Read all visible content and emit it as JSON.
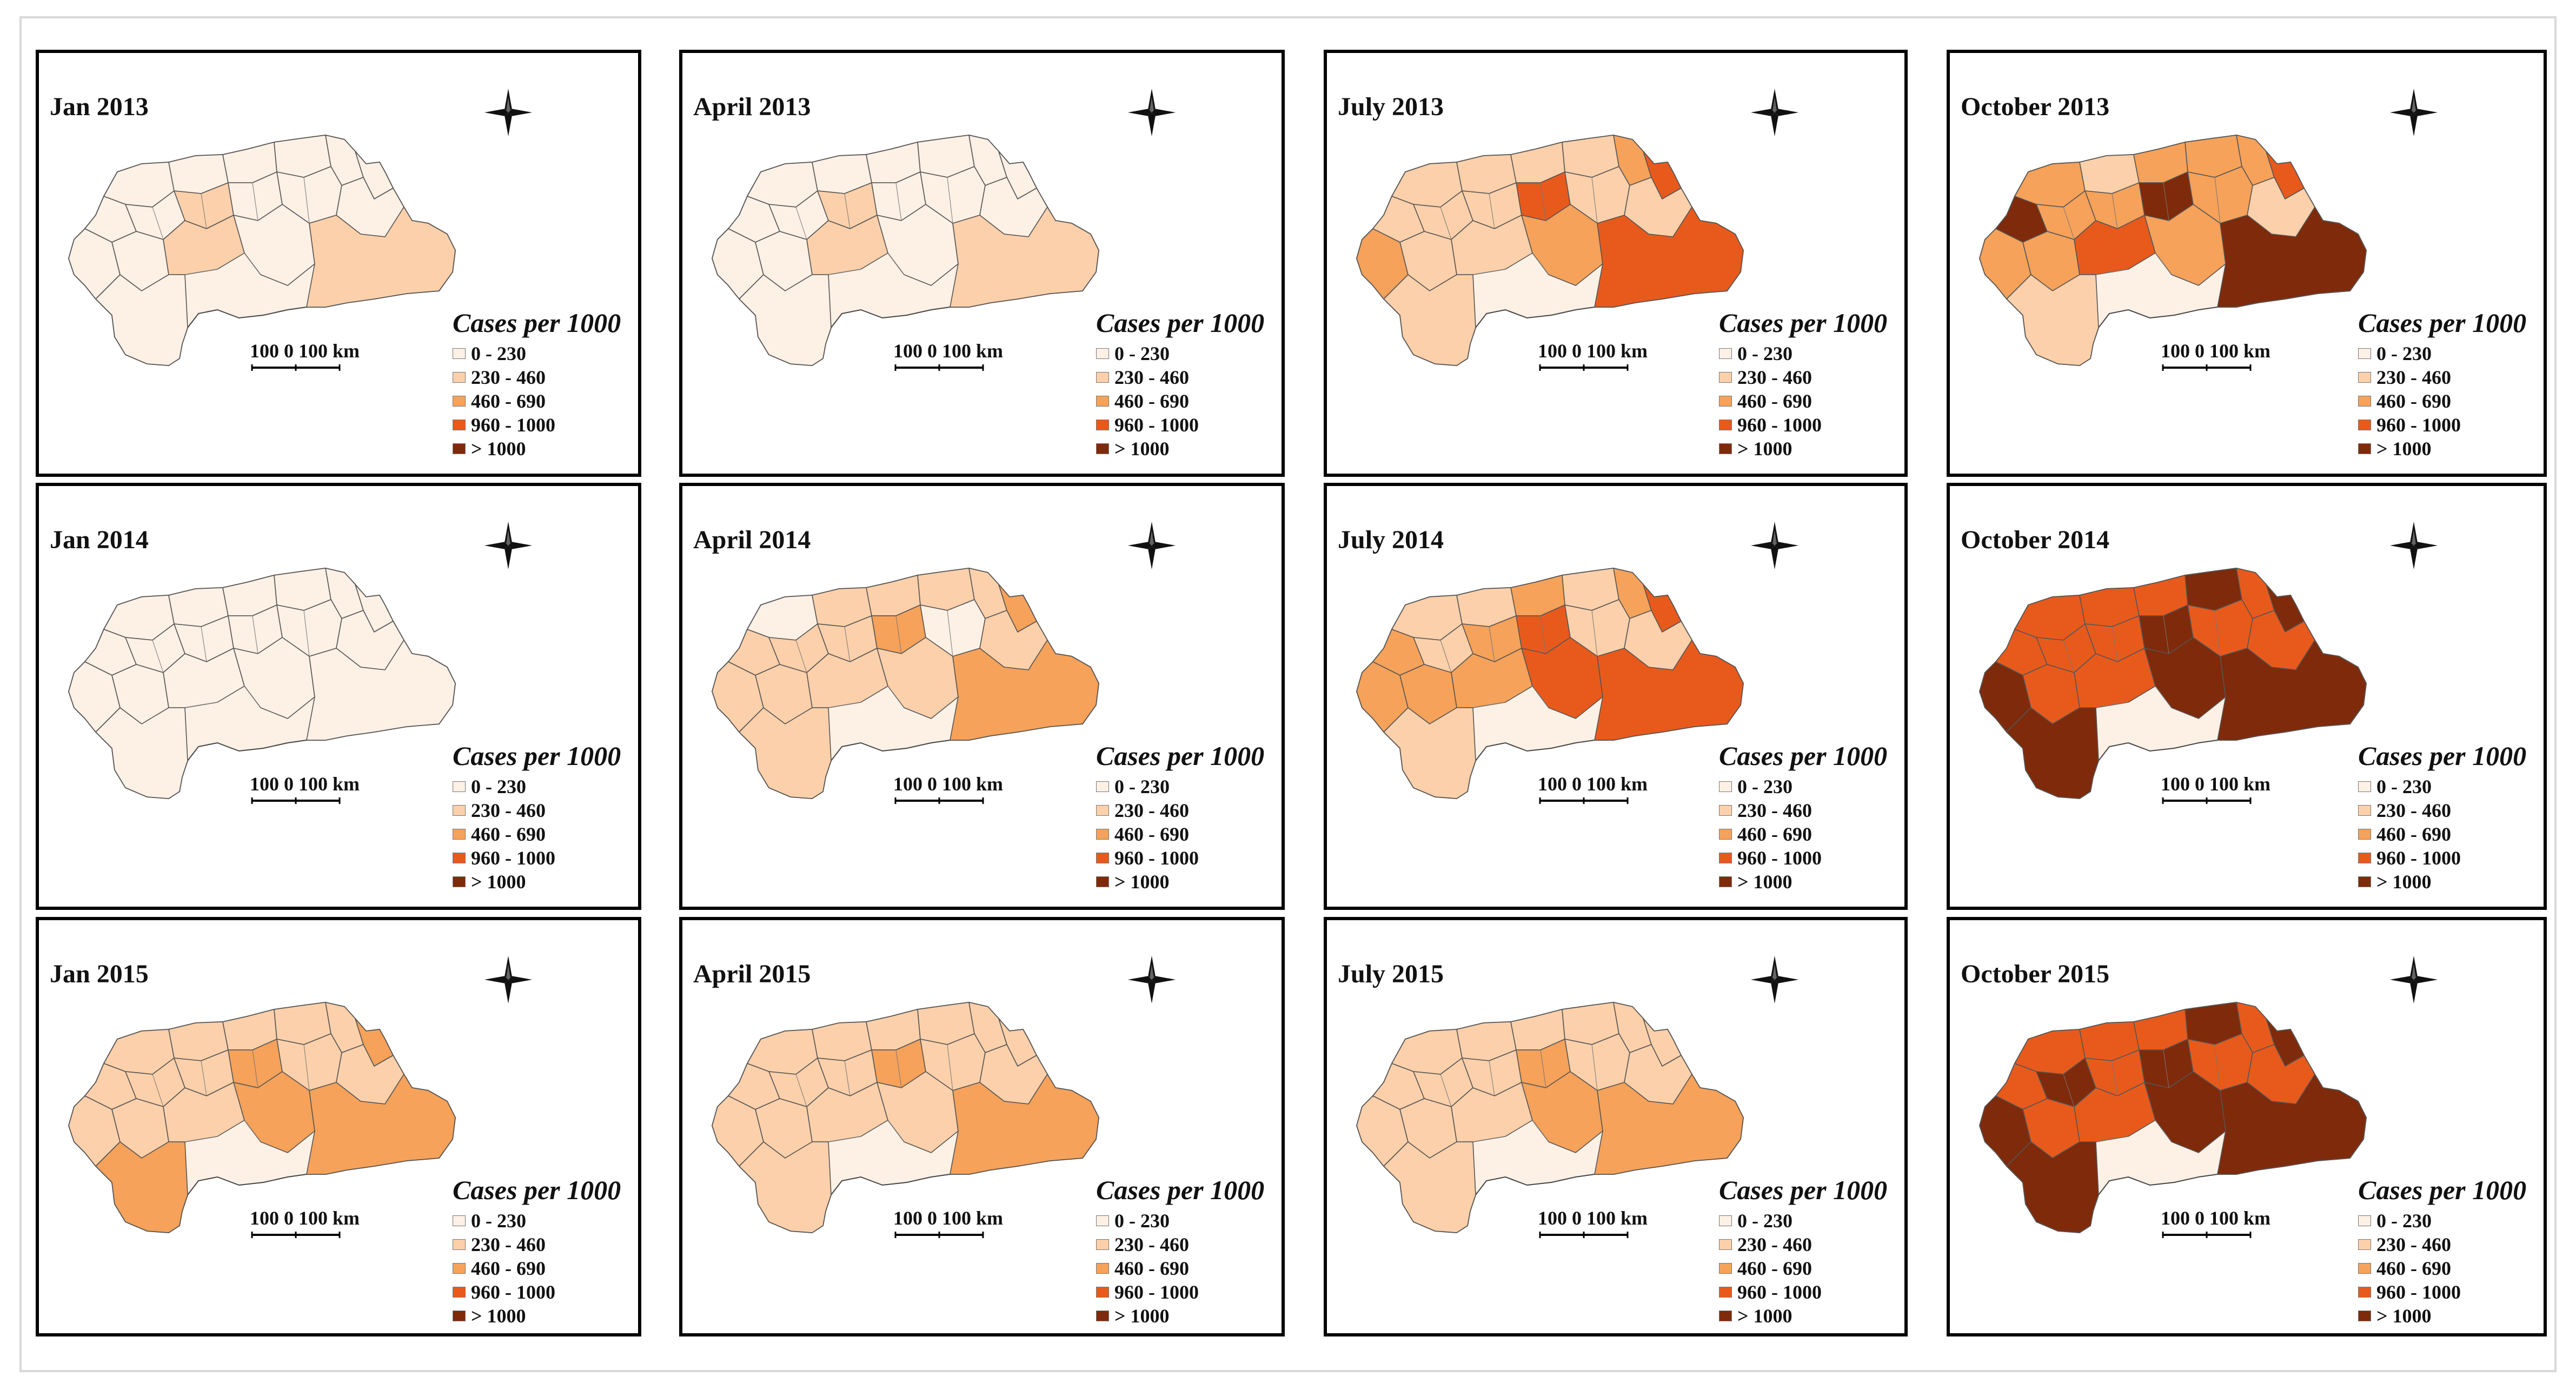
{
  "legend": {
    "title": "Cases per 1000",
    "classes": [
      {
        "label": "0 - 230",
        "color": "#fdf0e5"
      },
      {
        "label": "230 - 460",
        "color": "#fbd0aa"
      },
      {
        "label": "460 - 690",
        "color": "#f6a25a"
      },
      {
        "label": "960 - 1000",
        "color": "#e85a1c"
      },
      {
        "label": "> 1000",
        "color": "#7f2a0a"
      }
    ]
  },
  "scalebar": {
    "left": "100",
    "mid": "0",
    "right": "100",
    "unit": "km"
  },
  "panels": [
    {
      "title": "Jan 2013",
      "scheme": [
        0,
        0,
        0,
        0,
        0,
        0,
        0,
        0,
        1,
        0,
        0,
        0,
        0,
        0,
        1,
        0,
        0,
        1
      ]
    },
    {
      "title": "April 2013",
      "scheme": [
        0,
        0,
        0,
        0,
        0,
        0,
        0,
        0,
        1,
        0,
        0,
        0,
        0,
        0,
        1,
        0,
        0,
        1
      ]
    },
    {
      "title": "July 2013",
      "scheme": [
        1,
        1,
        1,
        1,
        2,
        3,
        1,
        1,
        1,
        3,
        1,
        1,
        2,
        1,
        1,
        2,
        1,
        3
      ]
    },
    {
      "title": "October 2013",
      "scheme": [
        2,
        1,
        2,
        2,
        2,
        3,
        4,
        2,
        2,
        4,
        2,
        1,
        2,
        2,
        3,
        2,
        1,
        4
      ]
    },
    {
      "title": "Jan 2014",
      "scheme": [
        0,
        0,
        0,
        0,
        0,
        0,
        0,
        0,
        0,
        0,
        0,
        0,
        0,
        0,
        0,
        0,
        0,
        0
      ]
    },
    {
      "title": "April 2014",
      "scheme": [
        0,
        1,
        1,
        1,
        1,
        2,
        1,
        1,
        1,
        2,
        0,
        1,
        1,
        1,
        1,
        1,
        1,
        2
      ]
    },
    {
      "title": "July 2014",
      "scheme": [
        1,
        1,
        2,
        1,
        2,
        3,
        2,
        1,
        2,
        3,
        1,
        1,
        2,
        2,
        2,
        3,
        1,
        3
      ]
    },
    {
      "title": "October 2014",
      "scheme": [
        3,
        3,
        3,
        4,
        3,
        4,
        3,
        3,
        3,
        4,
        3,
        3,
        4,
        3,
        3,
        4,
        4,
        4
      ]
    },
    {
      "title": "Jan 2015",
      "scheme": [
        1,
        1,
        1,
        1,
        1,
        2,
        1,
        1,
        1,
        2,
        1,
        1,
        1,
        1,
        1,
        2,
        2,
        2
      ]
    },
    {
      "title": "April 2015",
      "scheme": [
        1,
        1,
        1,
        1,
        1,
        1,
        1,
        1,
        1,
        2,
        1,
        1,
        1,
        1,
        1,
        1,
        1,
        2
      ]
    },
    {
      "title": "July 2015",
      "scheme": [
        1,
        1,
        1,
        1,
        1,
        1,
        1,
        1,
        1,
        2,
        1,
        1,
        1,
        1,
        1,
        2,
        1,
        2
      ]
    },
    {
      "title": "October 2015",
      "scheme": [
        3,
        3,
        3,
        4,
        3,
        4,
        3,
        4,
        3,
        4,
        3,
        3,
        4,
        3,
        3,
        4,
        4,
        4
      ]
    }
  ]
}
